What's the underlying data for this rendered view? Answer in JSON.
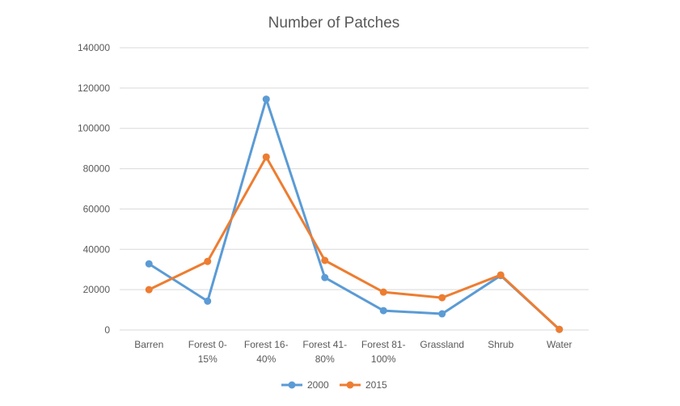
{
  "chart_data": {
    "type": "line",
    "title": "Number of Patches",
    "categories": [
      "Barren",
      "Forest 0-15%",
      "Forest 16-40%",
      "Forest 41-80%",
      "Forest 81-100%",
      "Grassland",
      "Shrub",
      "Water"
    ],
    "category_label_lines": [
      [
        "Barren"
      ],
      [
        "Forest 0-",
        "15%"
      ],
      [
        "Forest 16-",
        "40%"
      ],
      [
        "Forest 41-",
        "80%"
      ],
      [
        "Forest 81-",
        "100%"
      ],
      [
        "Grassland"
      ],
      [
        "Shrub"
      ],
      [
        "Water"
      ]
    ],
    "series": [
      {
        "name": "2000",
        "color": "#5b9bd5",
        "values": [
          32800,
          14300,
          114500,
          26000,
          9600,
          8000,
          27000,
          300
        ]
      },
      {
        "name": "2015",
        "color": "#ed7d31",
        "values": [
          20000,
          34000,
          85800,
          34500,
          18800,
          16000,
          27300,
          300
        ]
      }
    ],
    "ylim": [
      0,
      140000
    ],
    "yticks": [
      0,
      20000,
      40000,
      60000,
      80000,
      100000,
      120000,
      140000
    ],
    "xlabel": "",
    "ylabel": "",
    "grid": true,
    "legend_position": "bottom"
  }
}
